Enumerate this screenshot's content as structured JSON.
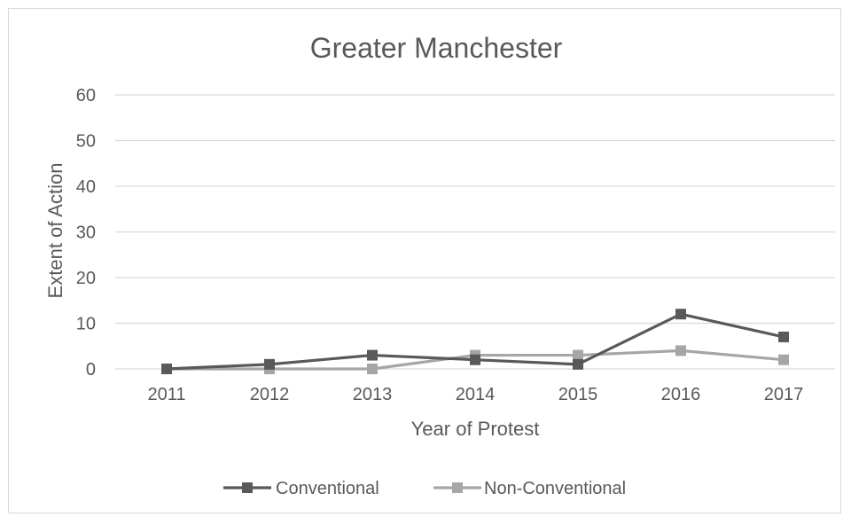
{
  "chart_data": {
    "type": "line",
    "title": "Greater Manchester",
    "xlabel": "Year of Protest",
    "ylabel": "Extent of Action",
    "categories": [
      "2011",
      "2012",
      "2013",
      "2014",
      "2015",
      "2016",
      "2017"
    ],
    "ylim": [
      0,
      60
    ],
    "yticks": [
      0,
      10,
      20,
      30,
      40,
      50,
      60
    ],
    "grid": true,
    "legend_position": "bottom",
    "series": [
      {
        "name": "Conventional",
        "values": [
          0,
          1,
          3,
          2,
          1,
          12,
          7
        ],
        "color": "#595959",
        "marker": "square"
      },
      {
        "name": "Non-Conventional",
        "values": [
          0,
          0,
          0,
          3,
          3,
          4,
          2
        ],
        "color": "#a6a6a6",
        "marker": "square"
      }
    ]
  }
}
